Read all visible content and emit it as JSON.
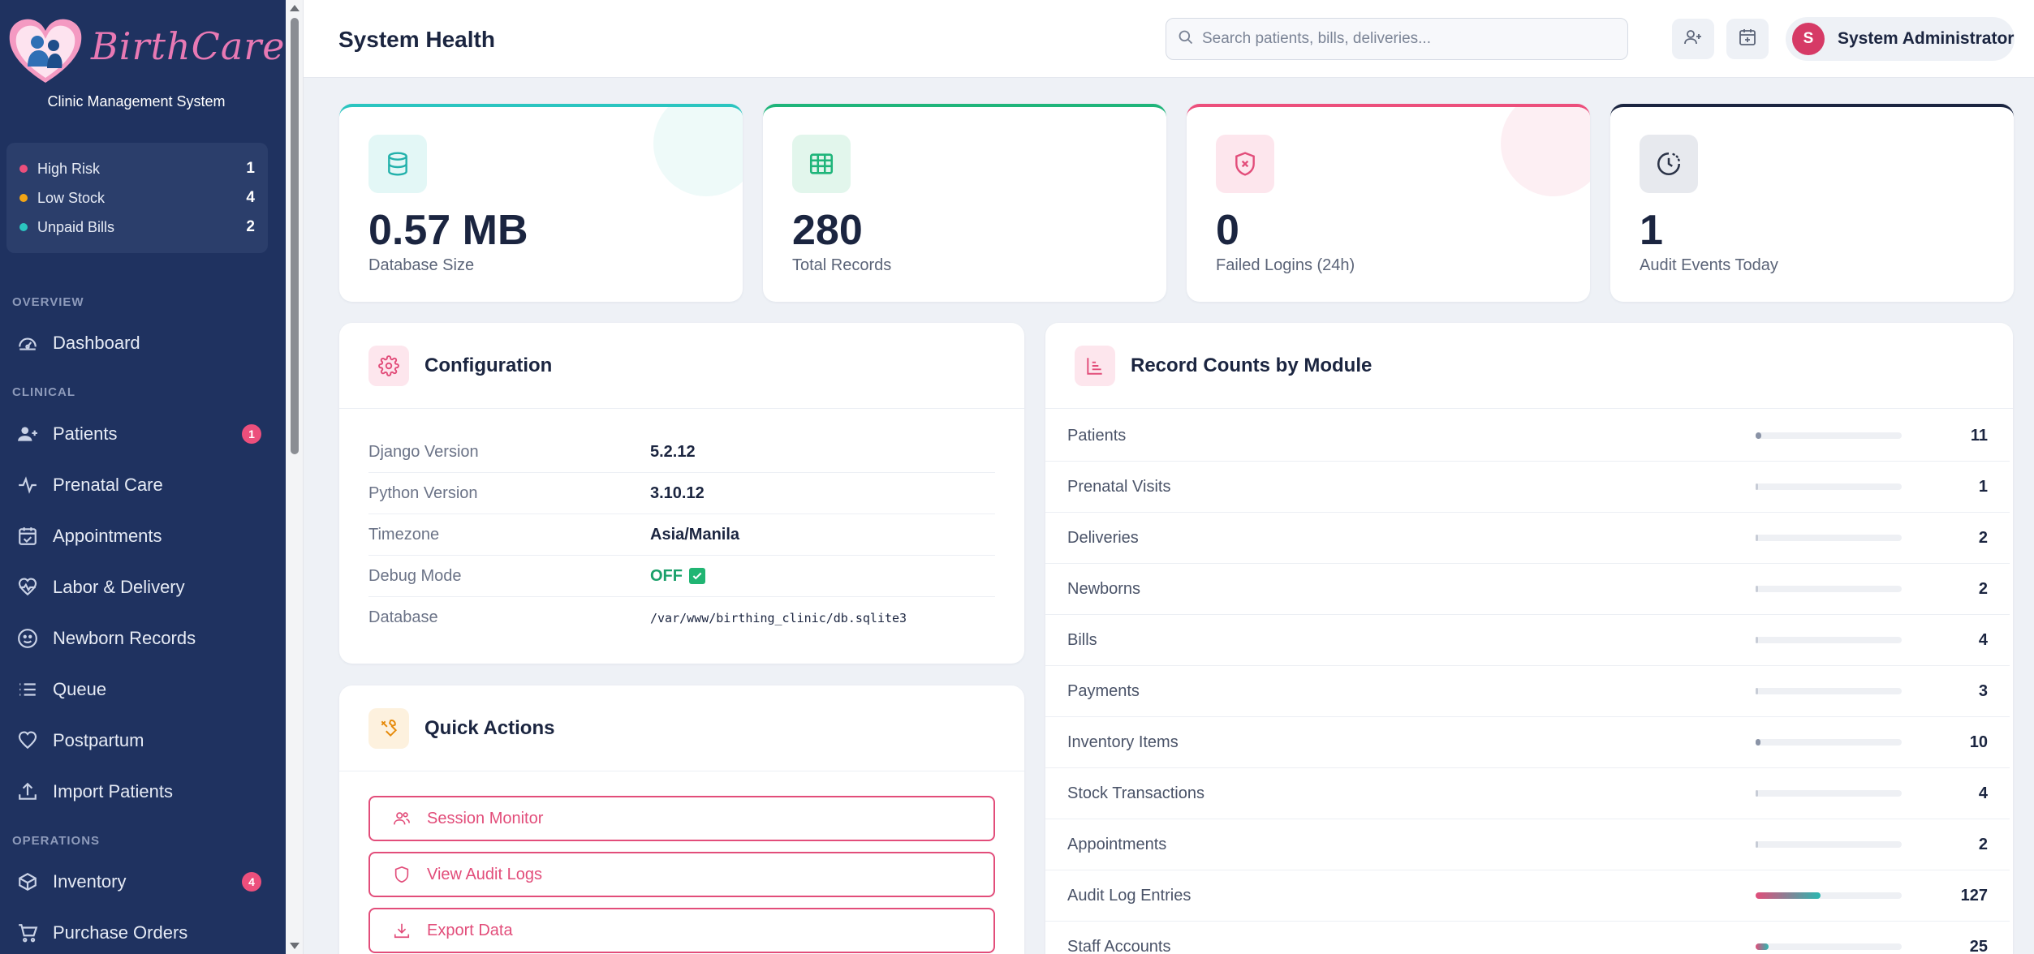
{
  "brand": {
    "name": "BirthCare",
    "subtitle": "Clinic Management System"
  },
  "alerts": [
    {
      "label": "High Risk",
      "count": "1",
      "color": "#ec4f7c"
    },
    {
      "label": "Low Stock",
      "count": "4",
      "color": "#f2a516"
    },
    {
      "label": "Unpaid Bills",
      "count": "2",
      "color": "#2bc5c0"
    }
  ],
  "nav": {
    "sections": {
      "overview": "OVERVIEW",
      "clinical": "CLINICAL",
      "operations": "OPERATIONS"
    },
    "items": [
      {
        "label": "Dashboard",
        "icon": "dashboard-gauge-icon"
      },
      {
        "label": "Patients",
        "icon": "users-icon",
        "badge": "1"
      },
      {
        "label": "Prenatal Care",
        "icon": "pulse-icon"
      },
      {
        "label": "Appointments",
        "icon": "calendar-check-icon"
      },
      {
        "label": "Labor & Delivery",
        "icon": "heart-pulse-icon"
      },
      {
        "label": "Newborn Records",
        "icon": "baby-face-icon"
      },
      {
        "label": "Queue",
        "icon": "list-icon"
      },
      {
        "label": "Postpartum",
        "icon": "heart-icon"
      },
      {
        "label": "Import Patients",
        "icon": "upload-icon"
      },
      {
        "label": "Inventory",
        "icon": "box-icon",
        "badge": "4"
      },
      {
        "label": "Purchase Orders",
        "icon": "cart-icon"
      }
    ]
  },
  "topbar": {
    "title": "System Health",
    "search_placeholder": "Search patients, bills, deliveries...",
    "user_initial": "S",
    "user_name": "System Administrator"
  },
  "stats": [
    {
      "value": "0.57 MB",
      "label": "Database Size",
      "icon": "database-icon",
      "accent": "#2bc5c0"
    },
    {
      "value": "280",
      "label": "Total Records",
      "icon": "table-icon",
      "accent": "#1fb57a"
    },
    {
      "value": "0",
      "label": "Failed Logins (24h)",
      "icon": "shield-x-icon",
      "accent": "#ec4f7c"
    },
    {
      "value": "1",
      "label": "Audit Events Today",
      "icon": "clock-icon",
      "accent": "#1b2540"
    }
  ],
  "configuration": {
    "title": "Configuration",
    "rows": [
      {
        "key": "Django Version",
        "value": "5.2.12"
      },
      {
        "key": "Python Version",
        "value": "3.10.12"
      },
      {
        "key": "Timezone",
        "value": "Asia/Manila"
      },
      {
        "key": "Debug Mode",
        "value": "OFF"
      },
      {
        "key": "Database",
        "value": "/var/www/birthing_clinic/db.sqlite3"
      }
    ]
  },
  "quick_actions": {
    "title": "Quick Actions",
    "buttons": [
      {
        "label": "Session Monitor",
        "icon": "users-icon"
      },
      {
        "label": "View Audit Logs",
        "icon": "shield-icon"
      },
      {
        "label": "Export Data",
        "icon": "download-icon"
      }
    ]
  },
  "record_counts": {
    "title": "Record Counts by Module",
    "rows": [
      {
        "label": "Patients",
        "count": "11",
        "share": 0.04
      },
      {
        "label": "Prenatal Visits",
        "count": "1",
        "share": 0.004
      },
      {
        "label": "Deliveries",
        "count": "2",
        "share": 0.007
      },
      {
        "label": "Newborns",
        "count": "2",
        "share": 0.007
      },
      {
        "label": "Bills",
        "count": "4",
        "share": 0.014
      },
      {
        "label": "Payments",
        "count": "3",
        "share": 0.011
      },
      {
        "label": "Inventory Items",
        "count": "10",
        "share": 0.036
      },
      {
        "label": "Stock Transactions",
        "count": "4",
        "share": 0.014
      },
      {
        "label": "Appointments",
        "count": "2",
        "share": 0.007
      },
      {
        "label": "Audit Log Entries",
        "count": "127",
        "share": 0.454
      },
      {
        "label": "Staff Accounts",
        "count": "25",
        "share": 0.089
      }
    ]
  }
}
